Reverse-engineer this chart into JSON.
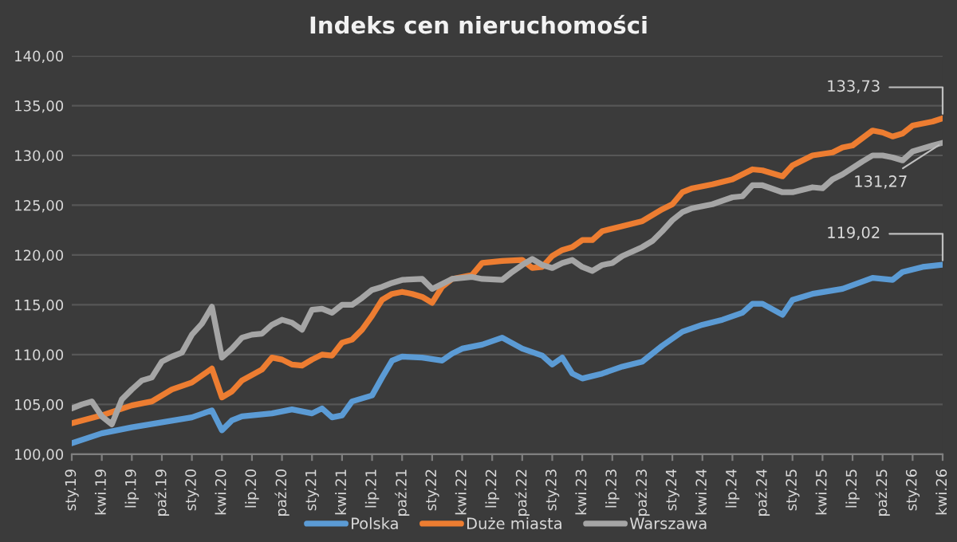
{
  "chart_data": {
    "type": "line",
    "title": "Indeks cen nieruchomości",
    "xlim": [
      "2019-01",
      "2026-04"
    ],
    "ylim": [
      100,
      140
    ],
    "yticks": [
      {
        "value": 100,
        "label": "100,00"
      },
      {
        "value": 105,
        "label": "105,00"
      },
      {
        "value": 110,
        "label": "110,00"
      },
      {
        "value": 115,
        "label": "115,00"
      },
      {
        "value": 120,
        "label": "120,00"
      },
      {
        "value": 125,
        "label": "125,00"
      },
      {
        "value": 130,
        "label": "130,00"
      },
      {
        "value": 135,
        "label": "135,00"
      },
      {
        "value": 140,
        "label": "140,00"
      }
    ],
    "xticks": [
      {
        "value": "2019-01",
        "label": "sty.19"
      },
      {
        "value": "2019-04",
        "label": "kwi.19"
      },
      {
        "value": "2019-07",
        "label": "lip.19"
      },
      {
        "value": "2019-10",
        "label": "paź.19"
      },
      {
        "value": "2020-01",
        "label": "sty.20"
      },
      {
        "value": "2020-04",
        "label": "kwi.20"
      },
      {
        "value": "2020-07",
        "label": "lip.20"
      },
      {
        "value": "2020-10",
        "label": "paź.20"
      },
      {
        "value": "2021-01",
        "label": "sty.21"
      },
      {
        "value": "2021-04",
        "label": "kwi.21"
      },
      {
        "value": "2021-07",
        "label": "lip.21"
      },
      {
        "value": "2021-10",
        "label": "paź.21"
      },
      {
        "value": "2022-01",
        "label": "sty.22"
      },
      {
        "value": "2022-04",
        "label": "kwi.22"
      },
      {
        "value": "2022-07",
        "label": "lip.22"
      },
      {
        "value": "2022-10",
        "label": "paź.22"
      },
      {
        "value": "2023-01",
        "label": "sty.23"
      },
      {
        "value": "2023-04",
        "label": "kwi.23"
      },
      {
        "value": "2023-07",
        "label": "lip.23"
      },
      {
        "value": "2023-10",
        "label": "paź.23"
      },
      {
        "value": "2024-01",
        "label": "sty.24"
      },
      {
        "value": "2024-04",
        "label": "kwi.24"
      },
      {
        "value": "2024-07",
        "label": "lip.24"
      },
      {
        "value": "2024-10",
        "label": "paź.24"
      },
      {
        "value": "2025-01",
        "label": "sty.25"
      },
      {
        "value": "2025-04",
        "label": "kwi.25"
      },
      {
        "value": "2025-07",
        "label": "lip.25"
      },
      {
        "value": "2025-10",
        "label": "paź.25"
      },
      {
        "value": "2026-01",
        "label": "sty.26"
      },
      {
        "value": "2026-04",
        "label": "kwi.26"
      }
    ],
    "grid": "y",
    "legend": "bottom",
    "marker": "none",
    "line_style": "solid",
    "series": [
      {
        "name": "Polska",
        "color": "#5b9bd5",
        "x": [
          "2019-01",
          "2019-04",
          "2019-07",
          "2020-01",
          "2020-03",
          "2020-04",
          "2020-05",
          "2020-06",
          "2020-09",
          "2020-11",
          "2021-01",
          "2021-02",
          "2021-03",
          "2021-04",
          "2021-05",
          "2021-07",
          "2021-08",
          "2021-09",
          "2021-10",
          "2021-12",
          "2022-02",
          "2022-03",
          "2022-04",
          "2022-06",
          "2022-08",
          "2022-10",
          "2022-12",
          "2023-01",
          "2023-02",
          "2023-03",
          "2023-04",
          "2023-06",
          "2023-08",
          "2023-10",
          "2023-12",
          "2024-02",
          "2024-04",
          "2024-06",
          "2024-08",
          "2024-09",
          "2024-10",
          "2024-12",
          "2025-01",
          "2025-03",
          "2025-06",
          "2025-09",
          "2025-11",
          "2025-12",
          "2026-02",
          "2026-04"
        ],
        "values": [
          101.1,
          102.1,
          102.7,
          103.7,
          104.4,
          102.4,
          103.4,
          103.8,
          104.1,
          104.5,
          104.1,
          104.6,
          103.7,
          103.9,
          105.3,
          105.9,
          107.7,
          109.4,
          109.8,
          109.7,
          109.4,
          110.1,
          110.6,
          111.0,
          111.7,
          110.6,
          109.9,
          109.0,
          109.7,
          108.1,
          107.6,
          108.1,
          108.8,
          109.3,
          110.9,
          112.3,
          113.0,
          113.5,
          114.2,
          115.1,
          115.1,
          114.0,
          115.5,
          116.1,
          116.6,
          117.7,
          117.5,
          118.3,
          118.8,
          119.02
        ]
      },
      {
        "name": "Duże miasta",
        "color": "#ed7d31",
        "x": [
          "2019-01",
          "2019-04",
          "2019-07",
          "2019-09",
          "2019-11",
          "2020-01",
          "2020-02",
          "2020-03",
          "2020-04",
          "2020-05",
          "2020-06",
          "2020-08",
          "2020-09",
          "2020-10",
          "2020-11",
          "2020-12",
          "2021-01",
          "2021-02",
          "2021-03",
          "2021-04",
          "2021-05",
          "2021-06",
          "2021-07",
          "2021-08",
          "2021-09",
          "2021-10",
          "2021-11",
          "2021-12",
          "2022-01",
          "2022-02",
          "2022-03",
          "2022-05",
          "2022-06",
          "2022-08",
          "2022-10",
          "2022-11",
          "2022-12",
          "2023-01",
          "2023-02",
          "2023-03",
          "2023-04",
          "2023-05",
          "2023-06",
          "2023-08",
          "2023-10",
          "2023-12",
          "2024-01",
          "2024-02",
          "2024-03",
          "2024-05",
          "2024-07",
          "2024-09",
          "2024-10",
          "2024-12",
          "2025-01",
          "2025-03",
          "2025-05",
          "2025-06",
          "2025-07",
          "2025-09",
          "2025-10",
          "2025-11",
          "2025-12",
          "2026-01",
          "2026-03",
          "2026-04"
        ],
        "values": [
          103.1,
          103.9,
          104.9,
          105.3,
          106.5,
          107.2,
          107.9,
          108.6,
          105.7,
          106.3,
          107.4,
          108.5,
          109.7,
          109.5,
          109.0,
          108.9,
          109.5,
          110.0,
          109.9,
          111.2,
          111.5,
          112.5,
          113.9,
          115.5,
          116.1,
          116.3,
          116.1,
          115.8,
          115.2,
          116.8,
          117.6,
          118.0,
          119.2,
          119.4,
          119.5,
          118.7,
          118.8,
          119.9,
          120.5,
          120.8,
          121.5,
          121.5,
          122.4,
          122.9,
          123.4,
          124.6,
          125.1,
          126.3,
          126.7,
          127.1,
          127.6,
          128.6,
          128.5,
          127.9,
          129.0,
          130.0,
          130.3,
          130.8,
          131.0,
          132.5,
          132.3,
          131.9,
          132.2,
          133.0,
          133.4,
          133.73
        ]
      },
      {
        "name": "Warszawa",
        "color": "#a5a5a5",
        "x": [
          "2019-01",
          "2019-02",
          "2019-03",
          "2019-04",
          "2019-05",
          "2019-06",
          "2019-07",
          "2019-08",
          "2019-09",
          "2019-10",
          "2019-11",
          "2019-12",
          "2020-01",
          "2020-02",
          "2020-03",
          "2020-04",
          "2020-05",
          "2020-06",
          "2020-07",
          "2020-08",
          "2020-09",
          "2020-10",
          "2020-11",
          "2020-12",
          "2021-01",
          "2021-02",
          "2021-03",
          "2021-04",
          "2021-05",
          "2021-06",
          "2021-07",
          "2021-08",
          "2021-09",
          "2021-10",
          "2021-12",
          "2022-01",
          "2022-02",
          "2022-03",
          "2022-05",
          "2022-06",
          "2022-08",
          "2022-09",
          "2022-10",
          "2022-11",
          "2022-12",
          "2023-01",
          "2023-02",
          "2023-03",
          "2023-04",
          "2023-05",
          "2023-06",
          "2023-07",
          "2023-08",
          "2023-10",
          "2023-11",
          "2023-12",
          "2024-01",
          "2024-02",
          "2024-03",
          "2024-05",
          "2024-07",
          "2024-08",
          "2024-09",
          "2024-10",
          "2024-12",
          "2025-01",
          "2025-03",
          "2025-04",
          "2025-05",
          "2025-06",
          "2025-08",
          "2025-09",
          "2025-10",
          "2025-11",
          "2025-12",
          "2026-01",
          "2026-03",
          "2026-04"
        ],
        "values": [
          104.6,
          105.0,
          105.3,
          103.8,
          103.0,
          105.5,
          106.5,
          107.4,
          107.7,
          109.3,
          109.8,
          110.2,
          112.0,
          113.1,
          114.8,
          109.7,
          110.6,
          111.7,
          112.0,
          112.1,
          113.0,
          113.5,
          113.2,
          112.5,
          114.5,
          114.6,
          114.2,
          115.0,
          115.0,
          115.7,
          116.5,
          116.8,
          117.2,
          117.5,
          117.6,
          116.6,
          117.1,
          117.6,
          117.8,
          117.6,
          117.5,
          118.3,
          119.0,
          119.6,
          119.0,
          118.7,
          119.2,
          119.5,
          118.8,
          118.4,
          119.0,
          119.2,
          119.9,
          120.8,
          121.4,
          122.4,
          123.5,
          124.3,
          124.7,
          125.1,
          125.8,
          125.9,
          127.0,
          127.0,
          126.3,
          126.3,
          126.8,
          126.7,
          127.6,
          128.1,
          129.4,
          130.0,
          130.0,
          129.8,
          129.5,
          130.4,
          131.0,
          131.27
        ]
      }
    ],
    "annotations": [
      {
        "text": "133,73",
        "x": "2026-04",
        "y": 133.73
      },
      {
        "text": "131,27",
        "x": "2026-04",
        "y": 131.27
      },
      {
        "text": "119,02",
        "x": "2026-04",
        "y": 119.02
      }
    ]
  }
}
